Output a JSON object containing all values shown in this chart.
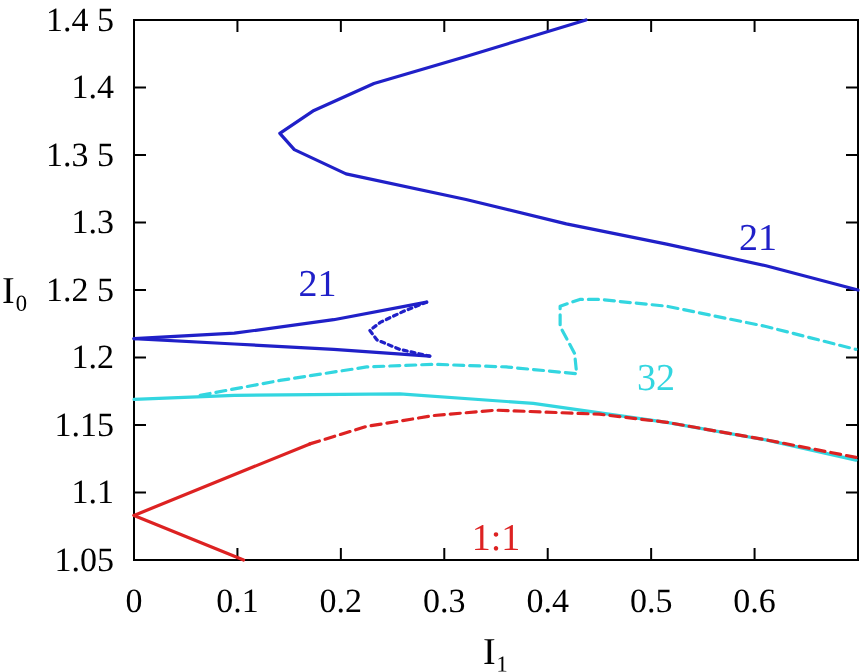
{
  "chart_data": {
    "type": "line",
    "xlabel": "I₁",
    "ylabel": "I₀",
    "xlim": [
      0,
      0.7
    ],
    "ylim": [
      1.05,
      1.45
    ],
    "xticks": [
      0,
      0.1,
      0.2,
      0.3,
      0.4,
      0.5,
      0.6
    ],
    "yticks": [
      1.05,
      1.1,
      1.15,
      1.2,
      {
        "value": 1.25,
        "label": "1.2 5"
      },
      1.3,
      {
        "value": 1.35,
        "label": "1.3 5"
      },
      1.4,
      {
        "value": 1.45,
        "label": "1.4 5"
      }
    ],
    "grid": false,
    "marker": "none",
    "series": [
      {
        "name": "21",
        "color": "#2020c8",
        "line_style": "solid",
        "x": [
          0.437,
          0.321,
          0.232,
          0.174,
          0.141,
          0.155,
          0.205,
          0.321,
          0.418,
          0.515,
          0.611,
          0.7
        ],
        "values": [
          1.45,
          1.423,
          1.403,
          1.383,
          1.366,
          1.354,
          1.336,
          1.317,
          1.299,
          1.284,
          1.268,
          1.25
        ]
      },
      {
        "name": "21",
        "color": "#2020c8",
        "line_style": "solid",
        "x": [
          0,
          0.097,
          0.193,
          0.283
        ],
        "values": [
          1.214,
          1.218,
          1.228,
          1.241
        ]
      },
      {
        "color": "#2020c8",
        "line_style": "solid",
        "x": [
          0,
          0.097,
          0.193,
          0.286
        ],
        "values": [
          1.214,
          1.21,
          1.206,
          1.201
        ]
      },
      {
        "color": "#2020c8",
        "line_style": "dotted",
        "x": [
          0.283,
          0.26,
          0.238,
          0.228,
          0.235,
          0.257,
          0.286
        ],
        "values": [
          1.241,
          1.234,
          1.226,
          1.22,
          1.213,
          1.206,
          1.201
        ]
      },
      {
        "color": "#33d6e0",
        "line_style": "solid",
        "x": [
          0,
          0.097,
          0.257,
          0.386,
          0.515,
          0.611,
          0.698
        ],
        "values": [
          1.169,
          1.172,
          1.173,
          1.166,
          1.152,
          1.139,
          1.124
        ]
      },
      {
        "name": "32",
        "color": "#33d6e0",
        "line_style": "dashed",
        "x": [
          0.064,
          0.141,
          0.225,
          0.29,
          0.36,
          0.428,
          0.426,
          0.412,
          0.412,
          0.431,
          0.45,
          0.515,
          0.611,
          0.698
        ],
        "values": [
          1.172,
          1.183,
          1.193,
          1.195,
          1.193,
          1.188,
          1.203,
          1.223,
          1.238,
          1.243,
          1.243,
          1.238,
          1.223,
          1.206
        ]
      },
      {
        "color": "#dd2222",
        "line_style": "solid",
        "x": [
          0,
          0.17
        ],
        "values": [
          1.083,
          1.136
        ]
      },
      {
        "color": "#dd2222",
        "line_style": "solid",
        "x": [
          0,
          0.106
        ],
        "values": [
          1.083,
          1.05
        ]
      },
      {
        "name": "1:1",
        "color": "#dd2222",
        "line_style": "dashed",
        "x": [
          0.17,
          0.225,
          0.29,
          0.35,
          0.45,
          0.515,
          0.611,
          0.698
        ],
        "values": [
          1.136,
          1.149,
          1.157,
          1.161,
          1.158,
          1.152,
          1.139,
          1.126
        ]
      }
    ]
  }
}
